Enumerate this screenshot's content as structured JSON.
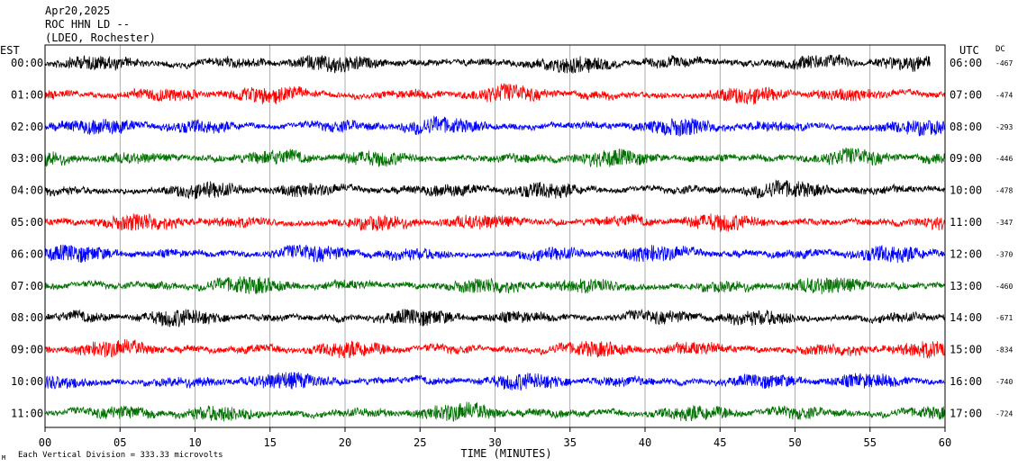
{
  "header": {
    "date": "Apr20,2025",
    "station": "ROC HHN LD --",
    "network": "(LDEO, Rochester)"
  },
  "labels": {
    "left_tz": "EST",
    "right_tz": "UTC",
    "dc_header": "DC",
    "xlabel": "TIME (MINUTES)",
    "footer_mark": "M",
    "footer_scale": "Each Vertical Division = 333.33 microvolts"
  },
  "chart_data": {
    "type": "line",
    "title": "",
    "xlabel": "TIME (MINUTES)",
    "ylabel": "",
    "xlim": [
      0,
      60
    ],
    "x_ticks": [
      "00",
      "05",
      "10",
      "15",
      "20",
      "25",
      "30",
      "35",
      "40",
      "45",
      "50",
      "55",
      "60"
    ],
    "grid": true,
    "rows": [
      {
        "est": "00:00",
        "utc": "06:00",
        "dc": "-467",
        "color": "#000000",
        "end_minute": 59.0
      },
      {
        "est": "01:00",
        "utc": "07:00",
        "dc": "-474",
        "color": "#ff0000",
        "end_minute": 60
      },
      {
        "est": "02:00",
        "utc": "08:00",
        "dc": "-293",
        "color": "#0000ff",
        "end_minute": 60
      },
      {
        "est": "03:00",
        "utc": "09:00",
        "dc": "-446",
        "color": "#007000",
        "end_minute": 60
      },
      {
        "est": "04:00",
        "utc": "10:00",
        "dc": "-478",
        "color": "#000000",
        "end_minute": 60
      },
      {
        "est": "05:00",
        "utc": "11:00",
        "dc": "-347",
        "color": "#ff0000",
        "end_minute": 60
      },
      {
        "est": "06:00",
        "utc": "12:00",
        "dc": "-370",
        "color": "#0000ff",
        "end_minute": 60
      },
      {
        "est": "07:00",
        "utc": "13:00",
        "dc": "-460",
        "color": "#007000",
        "end_minute": 60
      },
      {
        "est": "08:00",
        "utc": "14:00",
        "dc": "-671",
        "color": "#000000",
        "end_minute": 60
      },
      {
        "est": "09:00",
        "utc": "15:00",
        "dc": "-834",
        "color": "#ff0000",
        "end_minute": 60
      },
      {
        "est": "10:00",
        "utc": "16:00",
        "dc": "-740",
        "color": "#0000ff",
        "end_minute": 60
      },
      {
        "est": "11:00",
        "utc": "17:00",
        "dc": "-724",
        "color": "#007000",
        "end_minute": 60
      }
    ]
  }
}
